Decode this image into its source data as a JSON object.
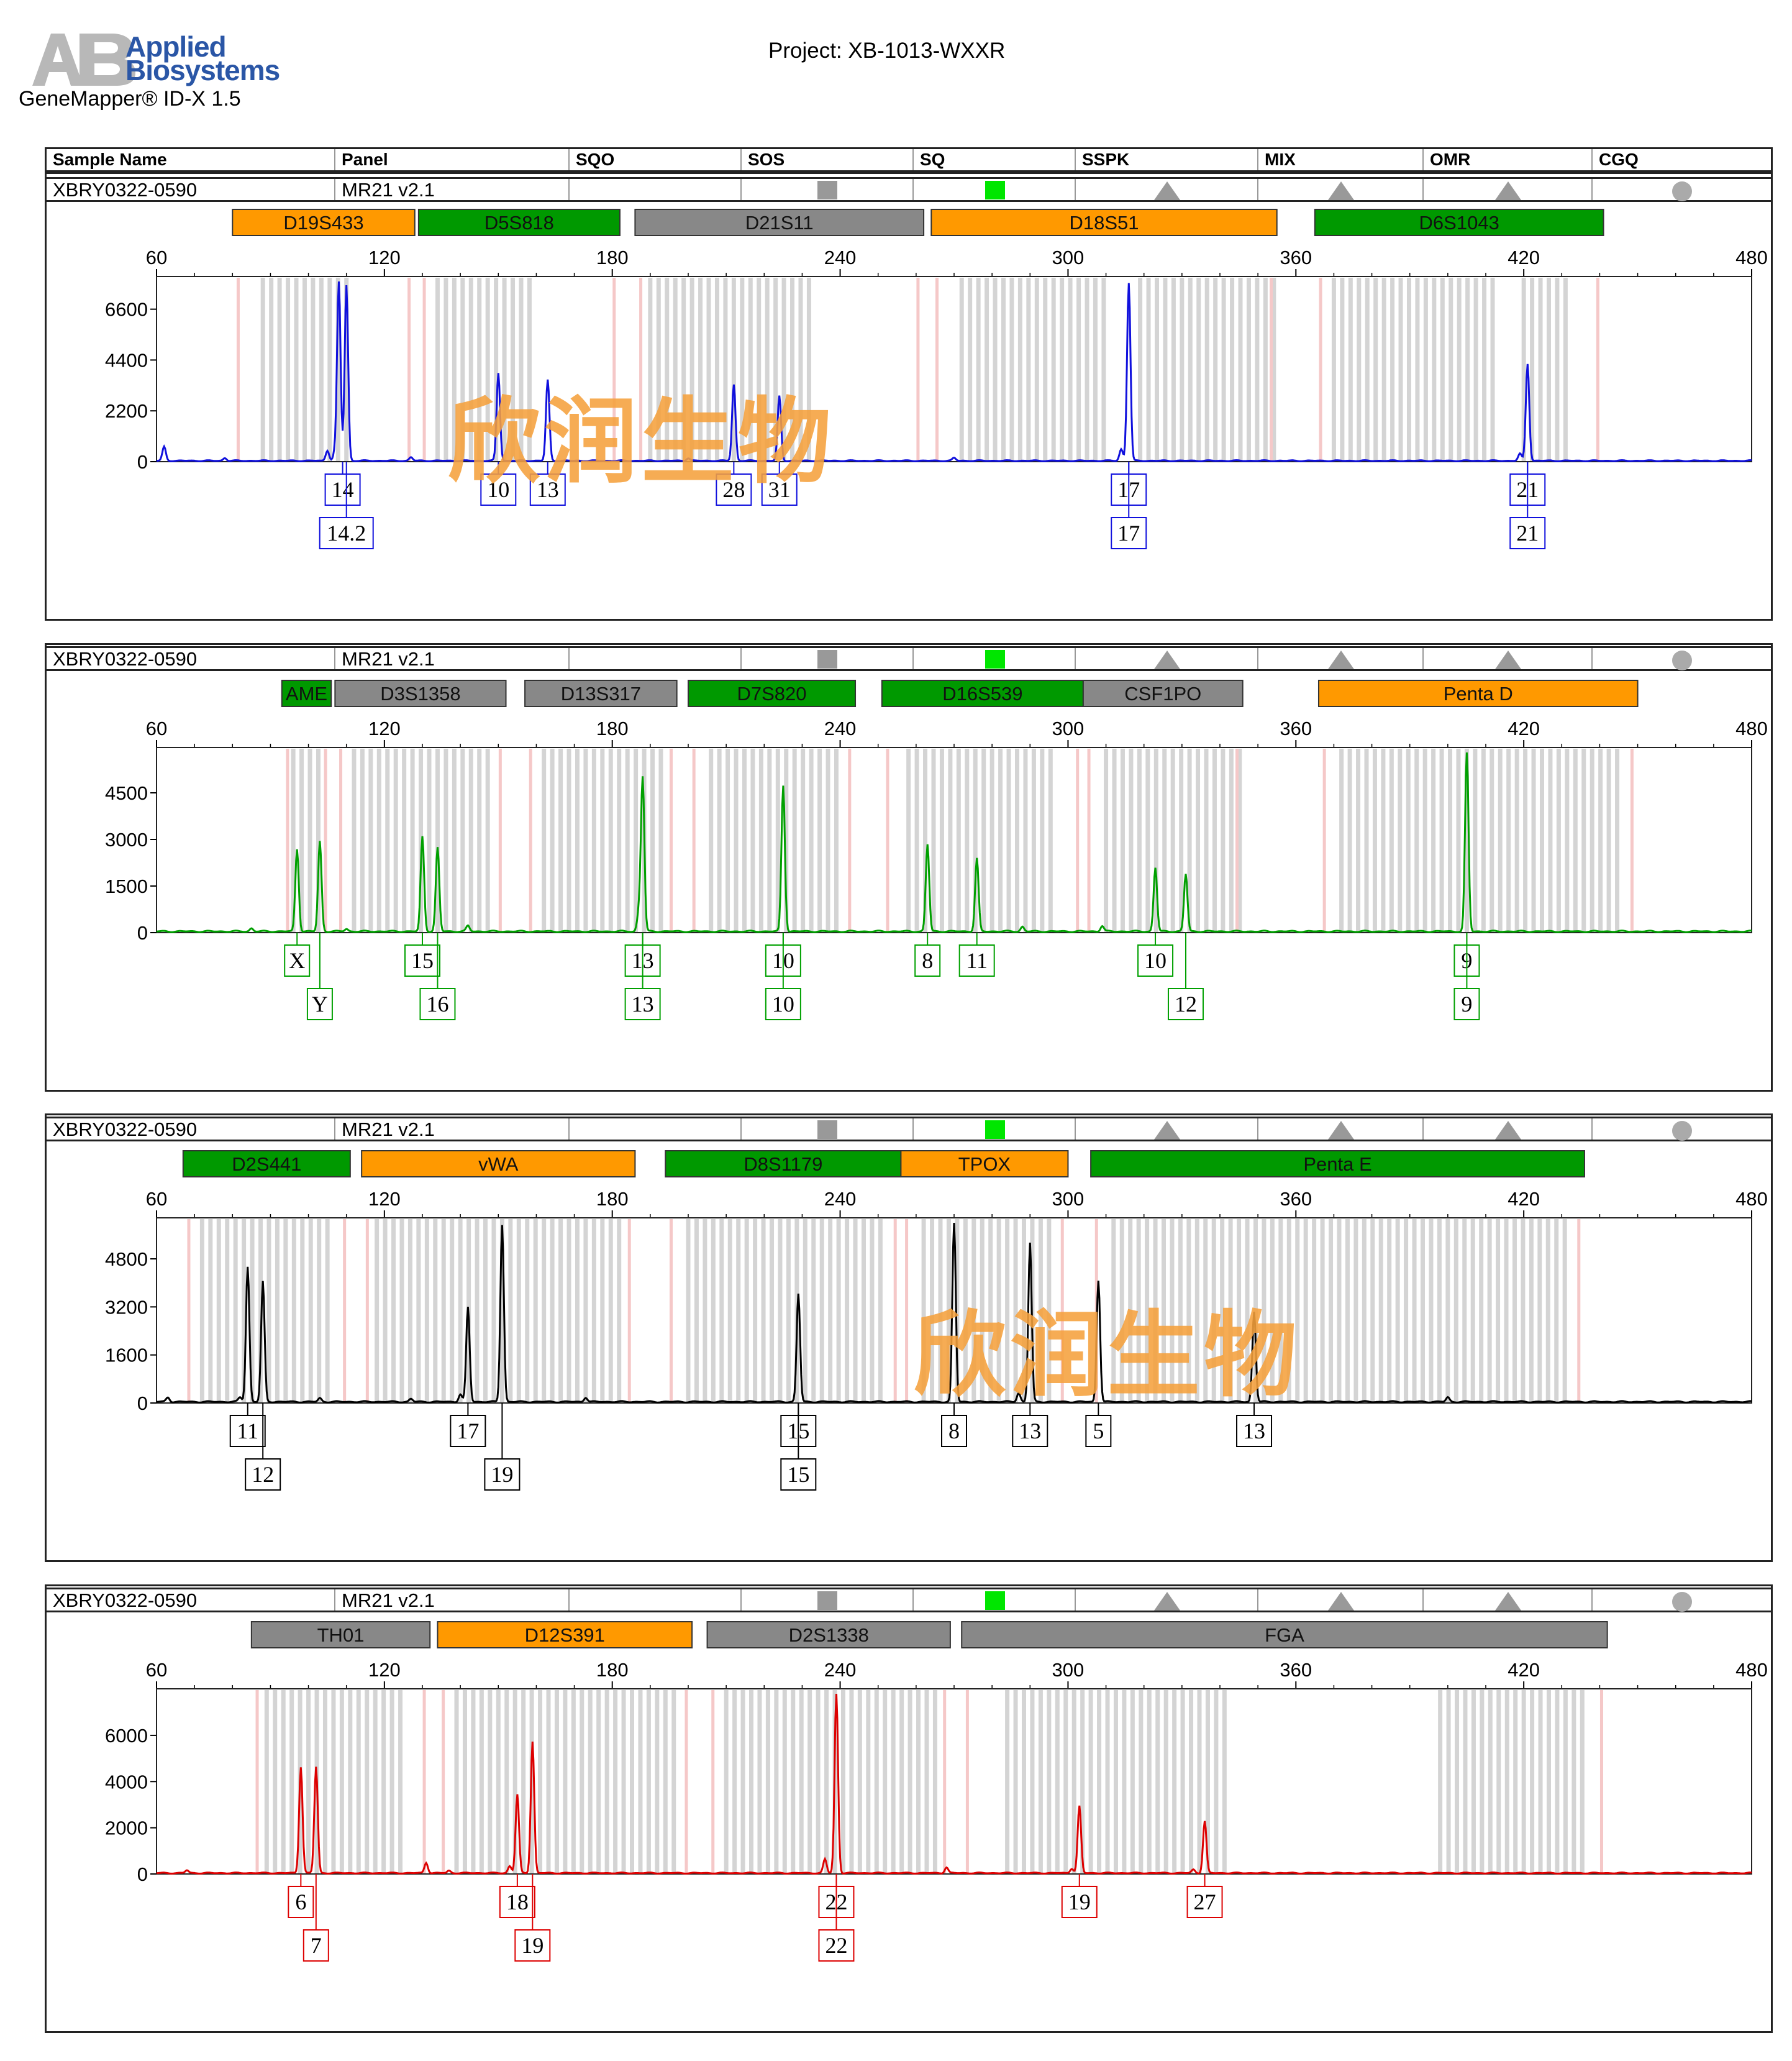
{
  "header": {
    "brand_line1": "Applied",
    "brand_line2": "Biosystems",
    "software": "GeneMapper® ID-X  1.5",
    "project": "Project: XB-1013-WXXR"
  },
  "columns": [
    "Sample Name",
    "Panel",
    "SQO",
    "SOS",
    "SQ",
    "SSPK",
    "MIX",
    "OMR",
    "CGQ"
  ],
  "quality_flags": {
    "SOS": "gray-square",
    "SQ": "green-square",
    "SSPK": "gray-triangle",
    "MIX": "gray-triangle",
    "OMR": "gray-triangle",
    "CGQ": "gray-circle"
  },
  "colors": {
    "marker_orange": "#ff9900",
    "marker_green": "#009900",
    "marker_gray": "#888888",
    "flag_green": "#00e600",
    "flag_gray": "#999999",
    "watermark": "#f5a03c"
  },
  "watermark_text": "欣润生物",
  "chart_data": [
    {
      "type": "line",
      "sample": "XBRY0322-0590",
      "panel": "MR21  v2.1",
      "dye_color": "#1010dd",
      "xlim": [
        60,
        480
      ],
      "xticks": [
        60,
        120,
        180,
        240,
        300,
        360,
        420,
        480
      ],
      "ylim": [
        0,
        7800
      ],
      "yticks": [
        0,
        2200,
        4400,
        6600
      ],
      "markers": [
        {
          "name": "D19S433",
          "color": "orange",
          "start": 80,
          "end": 128
        },
        {
          "name": "D5S818",
          "color": "green",
          "start": 129,
          "end": 182
        },
        {
          "name": "D21S11",
          "color": "gray",
          "start": 186,
          "end": 262
        },
        {
          "name": "D18S51",
          "color": "orange",
          "start": 264,
          "end": 355
        },
        {
          "name": "D6S1043",
          "color": "green",
          "start": 365,
          "end": 441
        }
      ],
      "peaks": [
        {
          "x": 108,
          "y": 7800
        },
        {
          "x": 110,
          "y": 7600
        },
        {
          "x": 105,
          "y": 450
        },
        {
          "x": 107,
          "y": 350
        },
        {
          "x": 150,
          "y": 3800
        },
        {
          "x": 163,
          "y": 3500
        },
        {
          "x": 212,
          "y": 3300
        },
        {
          "x": 224,
          "y": 2800
        },
        {
          "x": 316,
          "y": 7700
        },
        {
          "x": 314,
          "y": 500
        },
        {
          "x": 421,
          "y": 4200
        },
        {
          "x": 419,
          "y": 300
        },
        {
          "x": 62,
          "y": 600
        },
        {
          "x": 78,
          "y": 120
        },
        {
          "x": 127,
          "y": 150
        },
        {
          "x": 200,
          "y": 120
        },
        {
          "x": 270,
          "y": 120
        }
      ],
      "alleles": [
        {
          "x": 109,
          "label": "14",
          "row": 1
        },
        {
          "x": 110,
          "label": "14.2",
          "row": 2
        },
        {
          "x": 150,
          "label": "10",
          "row": 1
        },
        {
          "x": 163,
          "label": "13",
          "row": 1
        },
        {
          "x": 212,
          "label": "28",
          "row": 1
        },
        {
          "x": 224,
          "label": "31",
          "row": 1
        },
        {
          "x": 316,
          "label": "17",
          "row": 1
        },
        {
          "x": 316,
          "label": "17",
          "row": 2
        },
        {
          "x": 421,
          "label": "21",
          "row": 1
        },
        {
          "x": 421,
          "label": "21",
          "row": 2
        }
      ],
      "bins": [
        [
          88,
          112
        ],
        [
          134,
          160
        ],
        [
          190,
          232
        ],
        [
          272,
          310
        ],
        [
          319,
          355
        ],
        [
          370,
          412
        ],
        [
          420,
          433
        ]
      ]
    },
    {
      "type": "line",
      "sample": "XBRY0322-0590",
      "panel": "MR21  v2.1",
      "dye_color": "#00a000",
      "xlim": [
        60,
        480
      ],
      "xticks": [
        60,
        120,
        180,
        240,
        300,
        360,
        420,
        480
      ],
      "ylim": [
        0,
        5800
      ],
      "yticks": [
        0,
        1500,
        3000,
        4500
      ],
      "markers": [
        {
          "name": "AME",
          "color": "green",
          "start": 93,
          "end": 106
        },
        {
          "name": "D3S1358",
          "color": "gray",
          "start": 107,
          "end": 152
        },
        {
          "name": "D13S317",
          "color": "gray",
          "start": 157,
          "end": 197
        },
        {
          "name": "D7S820",
          "color": "green",
          "start": 200,
          "end": 244
        },
        {
          "name": "D16S539",
          "color": "green",
          "start": 251,
          "end": 304
        },
        {
          "name": "CSF1PO",
          "color": "gray",
          "start": 304,
          "end": 346
        },
        {
          "name": "Penta D",
          "color": "orange",
          "start": 366,
          "end": 450
        }
      ],
      "peaks": [
        {
          "x": 97,
          "y": 2650
        },
        {
          "x": 103,
          "y": 2900
        },
        {
          "x": 130,
          "y": 3050
        },
        {
          "x": 134,
          "y": 2700
        },
        {
          "x": 188,
          "y": 4950
        },
        {
          "x": 187,
          "y": 600
        },
        {
          "x": 225,
          "y": 4700
        },
        {
          "x": 263,
          "y": 2800
        },
        {
          "x": 276,
          "y": 2350
        },
        {
          "x": 288,
          "y": 150
        },
        {
          "x": 309,
          "y": 180
        },
        {
          "x": 323,
          "y": 2050
        },
        {
          "x": 331,
          "y": 1850
        },
        {
          "x": 405,
          "y": 5800
        },
        {
          "x": 85,
          "y": 100
        },
        {
          "x": 142,
          "y": 180
        },
        {
          "x": 110,
          "y": 80
        }
      ],
      "alleles": [
        {
          "x": 97,
          "label": "X",
          "row": 1
        },
        {
          "x": 103,
          "label": "Y",
          "row": 2
        },
        {
          "x": 130,
          "label": "15",
          "row": 1
        },
        {
          "x": 134,
          "label": "16",
          "row": 2
        },
        {
          "x": 188,
          "label": "13",
          "row": 1
        },
        {
          "x": 188,
          "label": "13",
          "row": 2
        },
        {
          "x": 225,
          "label": "10",
          "row": 1
        },
        {
          "x": 225,
          "label": "10",
          "row": 2
        },
        {
          "x": 263,
          "label": "8",
          "row": 1
        },
        {
          "x": 276,
          "label": "11",
          "row": 1
        },
        {
          "x": 323,
          "label": "10",
          "row": 1
        },
        {
          "x": 331,
          "label": "12",
          "row": 2
        },
        {
          "x": 405,
          "label": "9",
          "row": 1
        },
        {
          "x": 405,
          "label": "9",
          "row": 2
        }
      ],
      "bins": [
        [
          96,
          104
        ],
        [
          112,
          148
        ],
        [
          162,
          194
        ],
        [
          206,
          240
        ],
        [
          258,
          296
        ],
        [
          310,
          346
        ],
        [
          372,
          446
        ]
      ]
    },
    {
      "type": "line",
      "sample": "XBRY0322-0590",
      "panel": "MR21  v2.1",
      "dye_color": "#000000",
      "xlim": [
        60,
        480
      ],
      "xticks": [
        60,
        120,
        180,
        240,
        300,
        360,
        420,
        480
      ],
      "ylim": [
        0,
        6000
      ],
      "yticks": [
        0,
        1600,
        3200,
        4800
      ],
      "markers": [
        {
          "name": "D2S441",
          "color": "green",
          "start": 67,
          "end": 111
        },
        {
          "name": "vWA",
          "color": "orange",
          "start": 114,
          "end": 186
        },
        {
          "name": "D8S1179",
          "color": "green",
          "start": 194,
          "end": 256
        },
        {
          "name": "TPOX",
          "color": "orange",
          "start": 256,
          "end": 300
        },
        {
          "name": "Penta E",
          "color": "green",
          "start": 306,
          "end": 436
        }
      ],
      "peaks": [
        {
          "x": 84,
          "y": 4500
        },
        {
          "x": 88,
          "y": 4000
        },
        {
          "x": 142,
          "y": 3150
        },
        {
          "x": 151,
          "y": 5900
        },
        {
          "x": 229,
          "y": 3600
        },
        {
          "x": 270,
          "y": 6000
        },
        {
          "x": 290,
          "y": 5300
        },
        {
          "x": 308,
          "y": 4050
        },
        {
          "x": 349,
          "y": 3000
        },
        {
          "x": 82,
          "y": 150
        },
        {
          "x": 140,
          "y": 250
        },
        {
          "x": 287,
          "y": 300
        },
        {
          "x": 63,
          "y": 150
        },
        {
          "x": 103,
          "y": 120
        },
        {
          "x": 127,
          "y": 100
        },
        {
          "x": 173,
          "y": 150
        },
        {
          "x": 400,
          "y": 150
        }
      ],
      "alleles": [
        {
          "x": 84,
          "label": "11",
          "row": 1
        },
        {
          "x": 88,
          "label": "12",
          "row": 2
        },
        {
          "x": 142,
          "label": "17",
          "row": 1
        },
        {
          "x": 151,
          "label": "19",
          "row": 2
        },
        {
          "x": 229,
          "label": "15",
          "row": 1
        },
        {
          "x": 229,
          "label": "15",
          "row": 2
        },
        {
          "x": 270,
          "label": "8",
          "row": 1
        },
        {
          "x": 290,
          "label": "13",
          "row": 1
        },
        {
          "x": 308,
          "label": "5",
          "row": 1
        },
        {
          "x": 349,
          "label": "13",
          "row": 1
        }
      ],
      "bins": [
        [
          72,
          106
        ],
        [
          118,
          182
        ],
        [
          200,
          252
        ],
        [
          262,
          296
        ],
        [
          312,
          432
        ]
      ]
    },
    {
      "type": "line",
      "sample": "XBRY0322-0590",
      "panel": "MR21  v2.1",
      "dye_color": "#dd0000",
      "xlim": [
        60,
        480
      ],
      "xticks": [
        60,
        120,
        180,
        240,
        300,
        360,
        420,
        480
      ],
      "ylim": [
        0,
        7800
      ],
      "yticks": [
        0,
        2000,
        4000,
        6000
      ],
      "markers": [
        {
          "name": "TH01",
          "color": "gray",
          "start": 85,
          "end": 132
        },
        {
          "name": "D12S391",
          "color": "orange",
          "start": 134,
          "end": 201
        },
        {
          "name": "D2S1338",
          "color": "gray",
          "start": 205,
          "end": 269
        },
        {
          "name": "FGA",
          "color": "gray",
          "start": 272,
          "end": 442
        }
      ],
      "peaks": [
        {
          "x": 98,
          "y": 4600
        },
        {
          "x": 102,
          "y": 4600
        },
        {
          "x": 155,
          "y": 3400
        },
        {
          "x": 159,
          "y": 5700
        },
        {
          "x": 239,
          "y": 7800
        },
        {
          "x": 236,
          "y": 600
        },
        {
          "x": 303,
          "y": 2900
        },
        {
          "x": 301,
          "y": 200
        },
        {
          "x": 336,
          "y": 2250
        },
        {
          "x": 333,
          "y": 150
        },
        {
          "x": 131,
          "y": 450
        },
        {
          "x": 153,
          "y": 300
        },
        {
          "x": 268,
          "y": 250
        },
        {
          "x": 68,
          "y": 120
        },
        {
          "x": 137,
          "y": 100
        }
      ],
      "alleles": [
        {
          "x": 98,
          "label": "6",
          "row": 1
        },
        {
          "x": 102,
          "label": "7",
          "row": 2
        },
        {
          "x": 155,
          "label": "18",
          "row": 1
        },
        {
          "x": 159,
          "label": "19",
          "row": 2
        },
        {
          "x": 239,
          "label": "22",
          "row": 1
        },
        {
          "x": 239,
          "label": "22",
          "row": 2
        },
        {
          "x": 303,
          "label": "19",
          "row": 1
        },
        {
          "x": 336,
          "label": "27",
          "row": 1
        }
      ],
      "bins": [
        [
          89,
          126
        ],
        [
          139,
          198
        ],
        [
          210,
          266
        ],
        [
          284,
          342
        ],
        [
          398,
          436
        ]
      ]
    }
  ]
}
